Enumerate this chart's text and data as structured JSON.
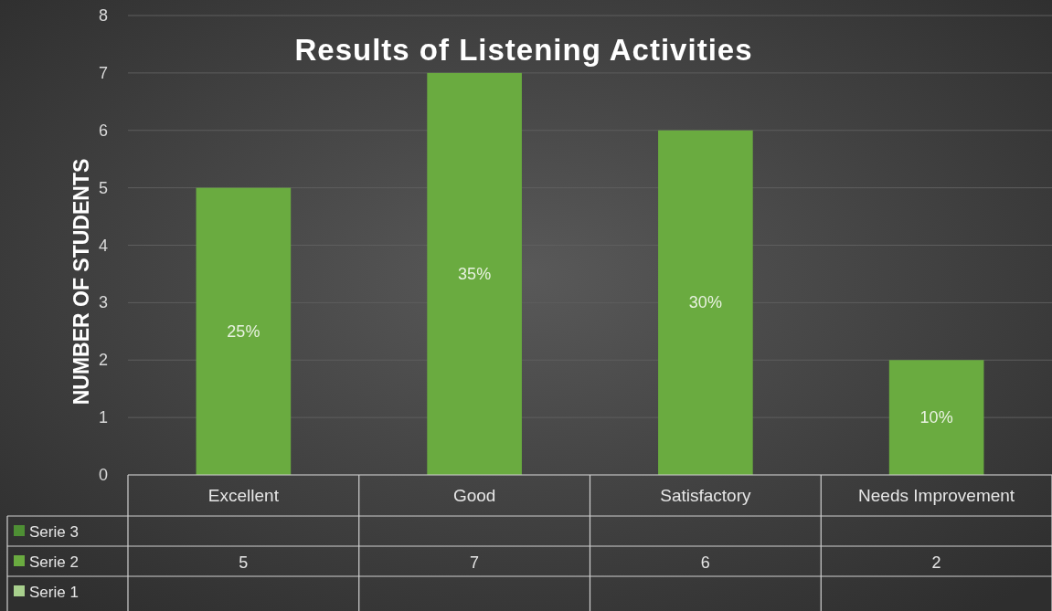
{
  "chart_data": {
    "type": "bar",
    "title": "Results of Listening Activities",
    "ylabel": "NUMBER OF STUDENTS",
    "categories": [
      "Excellent",
      "Good",
      "Satisfactory",
      "Needs Improvement"
    ],
    "series": [
      {
        "name": "Serie 3",
        "color": "#4e8f34",
        "values": [
          null,
          null,
          null,
          null
        ]
      },
      {
        "name": "Serie 2",
        "color": "#6aab40",
        "values": [
          5,
          7,
          6,
          2
        ]
      },
      {
        "name": "Serie 1",
        "color": "#a8d08d",
        "values": [
          null,
          null,
          null,
          null
        ]
      }
    ],
    "ylim": [
      0,
      8
    ],
    "yticks": [
      0,
      1,
      2,
      3,
      4,
      5,
      6,
      7,
      8
    ],
    "annotations": [
      "25%",
      "35%",
      "30%",
      "10%"
    ],
    "grid": "y",
    "legend": "bottom",
    "data_labels": true
  }
}
